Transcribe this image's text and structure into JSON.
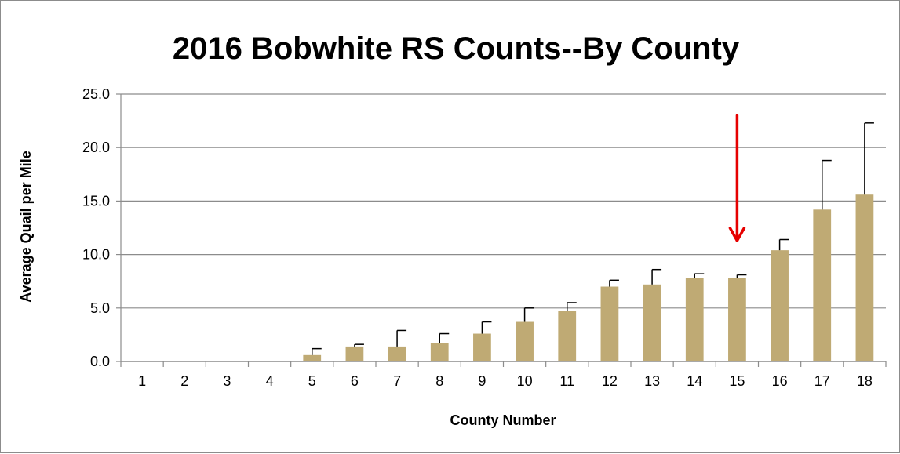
{
  "chart_data": {
    "type": "bar",
    "title": "2016 Bobwhite RS Counts--By County",
    "xlabel": "County Number",
    "ylabel": "Average Quail per Mile",
    "categories": [
      "1",
      "2",
      "3",
      "4",
      "5",
      "6",
      "7",
      "8",
      "9",
      "10",
      "11",
      "12",
      "13",
      "14",
      "15",
      "16",
      "17",
      "18"
    ],
    "values": [
      0,
      0,
      0,
      0,
      0.6,
      1.4,
      1.4,
      1.7,
      2.6,
      3.7,
      4.7,
      7.0,
      7.2,
      7.8,
      7.8,
      10.4,
      14.2,
      15.6
    ],
    "error_upper": [
      0,
      0,
      0,
      0,
      0.6,
      0.2,
      1.5,
      0.9,
      1.1,
      1.3,
      0.8,
      0.6,
      1.4,
      0.4,
      0.3,
      1.0,
      4.6,
      6.7
    ],
    "ylim": [
      0,
      25
    ],
    "yticks": [
      "0.0",
      "5.0",
      "10.0",
      "15.0",
      "20.0",
      "25.0"
    ],
    "grid": true,
    "legend": "none",
    "colors": {
      "bar": "#bfaa74",
      "error_bar": "#000000",
      "gridline": "#8c8c8c",
      "arrow": "#e60000"
    },
    "annotations": [
      {
        "type": "arrow",
        "target_category": "15",
        "from_y": 23.0,
        "to_y": 11.3
      }
    ]
  }
}
